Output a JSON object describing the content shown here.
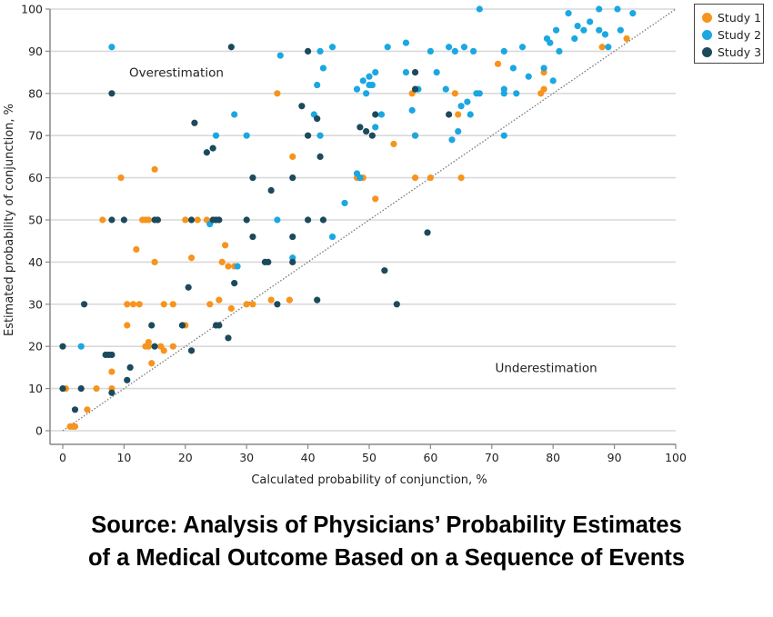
{
  "chart_data": {
    "type": "scatter",
    "title": "",
    "xlabel": "Calculated probability of conjunction, %",
    "ylabel": "Estimated probability of conjunction, %",
    "xlim": [
      0,
      100
    ],
    "ylim": [
      0,
      100
    ],
    "xticks": [
      "0",
      "10",
      "20",
      "30",
      "40",
      "50",
      "60",
      "70",
      "80",
      "90",
      "100"
    ],
    "yticks": [
      "0",
      "10",
      "20",
      "30",
      "40",
      "50",
      "60",
      "70",
      "80",
      "90",
      "100"
    ],
    "grid": "horizontal",
    "reference_line": "y = x (dotted)",
    "legend_position": "top-right",
    "annotations": [
      {
        "text": "Overestimation",
        "x": 19,
        "y": 85
      },
      {
        "text": "Underestimation",
        "x": 79,
        "y": 15
      }
    ],
    "series": [
      {
        "name": "Study 1",
        "color": "#f7941d",
        "points": [
          [
            1.2,
            1
          ],
          [
            1.6,
            1
          ],
          [
            2,
            1
          ],
          [
            0.5,
            10
          ],
          [
            4,
            5
          ],
          [
            5.5,
            10
          ],
          [
            8,
            10
          ],
          [
            8,
            14
          ],
          [
            6.5,
            50
          ],
          [
            9.5,
            60
          ],
          [
            12,
            43
          ],
          [
            13,
            50
          ],
          [
            13.5,
            50
          ],
          [
            14,
            50
          ],
          [
            15,
            62
          ],
          [
            15,
            40
          ],
          [
            10.5,
            25
          ],
          [
            11.5,
            30
          ],
          [
            10.5,
            30
          ],
          [
            12.5,
            30
          ],
          [
            13.5,
            20
          ],
          [
            14,
            21
          ],
          [
            14,
            20
          ],
          [
            14.5,
            16
          ],
          [
            16,
            20
          ],
          [
            16.5,
            19
          ],
          [
            16.5,
            30
          ],
          [
            18,
            30
          ],
          [
            18,
            20
          ],
          [
            20,
            25
          ],
          [
            20,
            50
          ],
          [
            21,
            41
          ],
          [
            22,
            50
          ],
          [
            23.5,
            50
          ],
          [
            24,
            30
          ],
          [
            25.5,
            31
          ],
          [
            26,
            40
          ],
          [
            26.5,
            44
          ],
          [
            27,
            39
          ],
          [
            27.5,
            29
          ],
          [
            28,
            39
          ],
          [
            30,
            30
          ],
          [
            31,
            30
          ],
          [
            34,
            31
          ],
          [
            35,
            80
          ],
          [
            37,
            31
          ],
          [
            37.5,
            65
          ],
          [
            48,
            60
          ],
          [
            48.5,
            60
          ],
          [
            49,
            60
          ],
          [
            51,
            55
          ],
          [
            54,
            68
          ],
          [
            57,
            80
          ],
          [
            57.5,
            60
          ],
          [
            57.5,
            70
          ],
          [
            60,
            60
          ],
          [
            64,
            80
          ],
          [
            64.5,
            75
          ],
          [
            65,
            60
          ],
          [
            71,
            87
          ],
          [
            78,
            80
          ],
          [
            78.5,
            81
          ],
          [
            78.5,
            85
          ],
          [
            88,
            91
          ],
          [
            92,
            93
          ]
        ]
      },
      {
        "name": "Study 2",
        "color": "#1ba7e1",
        "points": [
          [
            3,
            20
          ],
          [
            8,
            91
          ],
          [
            24,
            49
          ],
          [
            25,
            70
          ],
          [
            28,
            75
          ],
          [
            28.5,
            39
          ],
          [
            30,
            70
          ],
          [
            35,
            50
          ],
          [
            35.5,
            89
          ],
          [
            37.5,
            41
          ],
          [
            41,
            75
          ],
          [
            41.5,
            82
          ],
          [
            42,
            70
          ],
          [
            42,
            90
          ],
          [
            42.5,
            86
          ],
          [
            44,
            46
          ],
          [
            44,
            91
          ],
          [
            46,
            54
          ],
          [
            48,
            81
          ],
          [
            48,
            61
          ],
          [
            48.5,
            60
          ],
          [
            49,
            83
          ],
          [
            49.5,
            80
          ],
          [
            50,
            84
          ],
          [
            50,
            82
          ],
          [
            50.5,
            82
          ],
          [
            51,
            85
          ],
          [
            51,
            72
          ],
          [
            52,
            75
          ],
          [
            53,
            91
          ],
          [
            56,
            92
          ],
          [
            56,
            85
          ],
          [
            57,
            76
          ],
          [
            57.5,
            70
          ],
          [
            58,
            81
          ],
          [
            60,
            90
          ],
          [
            61,
            85
          ],
          [
            62.5,
            81
          ],
          [
            63,
            91
          ],
          [
            63.5,
            69
          ],
          [
            64,
            90
          ],
          [
            64.5,
            71
          ],
          [
            65,
            77
          ],
          [
            65.5,
            91
          ],
          [
            66,
            78
          ],
          [
            66.5,
            75
          ],
          [
            67,
            90
          ],
          [
            67.5,
            80
          ],
          [
            68,
            80
          ],
          [
            68,
            100
          ],
          [
            72,
            90
          ],
          [
            72,
            81
          ],
          [
            72,
            80
          ],
          [
            72,
            70
          ],
          [
            73.5,
            86
          ],
          [
            74,
            80
          ],
          [
            75,
            91
          ],
          [
            76,
            84
          ],
          [
            78.5,
            86
          ],
          [
            79,
            93
          ],
          [
            79.5,
            92
          ],
          [
            80,
            83
          ],
          [
            80.5,
            95
          ],
          [
            81,
            90
          ],
          [
            82.5,
            99
          ],
          [
            83.5,
            93
          ],
          [
            84,
            96
          ],
          [
            85,
            95
          ],
          [
            86,
            97
          ],
          [
            87.5,
            100
          ],
          [
            87.5,
            95
          ],
          [
            88.5,
            94
          ],
          [
            89,
            91
          ],
          [
            90.5,
            100
          ],
          [
            91,
            95
          ],
          [
            93,
            99
          ]
        ]
      },
      {
        "name": "Study 3",
        "color": "#1c4a5c",
        "points": [
          [
            0,
            20
          ],
          [
            0,
            10
          ],
          [
            2,
            5
          ],
          [
            3,
            10
          ],
          [
            3.5,
            30
          ],
          [
            7,
            18
          ],
          [
            7.5,
            18
          ],
          [
            8,
            18
          ],
          [
            8,
            9
          ],
          [
            8,
            50
          ],
          [
            8,
            80
          ],
          [
            10,
            50
          ],
          [
            10.5,
            12
          ],
          [
            11,
            15
          ],
          [
            14.5,
            25
          ],
          [
            15,
            50
          ],
          [
            15.5,
            50
          ],
          [
            15,
            20
          ],
          [
            19.5,
            25
          ],
          [
            20.5,
            34
          ],
          [
            21,
            50
          ],
          [
            21,
            19
          ],
          [
            21.5,
            73
          ],
          [
            23.5,
            66
          ],
          [
            24.5,
            67
          ],
          [
            24.5,
            50
          ],
          [
            25,
            50
          ],
          [
            25,
            25
          ],
          [
            25.5,
            25
          ],
          [
            25.5,
            50
          ],
          [
            27,
            22
          ],
          [
            27.5,
            91
          ],
          [
            28,
            35
          ],
          [
            30,
            50
          ],
          [
            31,
            46
          ],
          [
            31,
            60
          ],
          [
            33,
            40
          ],
          [
            33.5,
            40
          ],
          [
            34,
            57
          ],
          [
            35,
            30
          ],
          [
            37.5,
            46
          ],
          [
            37.5,
            60
          ],
          [
            37.5,
            40
          ],
          [
            39,
            77
          ],
          [
            40,
            90
          ],
          [
            40,
            70
          ],
          [
            40,
            50
          ],
          [
            41.5,
            74
          ],
          [
            41.5,
            31
          ],
          [
            42,
            65
          ],
          [
            42.5,
            50
          ],
          [
            48.5,
            72
          ],
          [
            49.5,
            71
          ],
          [
            50.5,
            70
          ],
          [
            51,
            75
          ],
          [
            52.5,
            38
          ],
          [
            54.5,
            30
          ],
          [
            57.5,
            85
          ],
          [
            57.5,
            81
          ],
          [
            59.5,
            47
          ],
          [
            63,
            75
          ]
        ]
      }
    ]
  },
  "legend": {
    "items": [
      {
        "label": "Study 1",
        "color": "#f7941d"
      },
      {
        "label": "Study 2",
        "color": "#1ba7e1"
      },
      {
        "label": "Study 3",
        "color": "#1c4a5c"
      }
    ]
  },
  "source": {
    "line1": "Source: Analysis of Physicians’ Probability Estimates",
    "line2": "of a Medical Outcome Based on a Sequence of Events"
  }
}
